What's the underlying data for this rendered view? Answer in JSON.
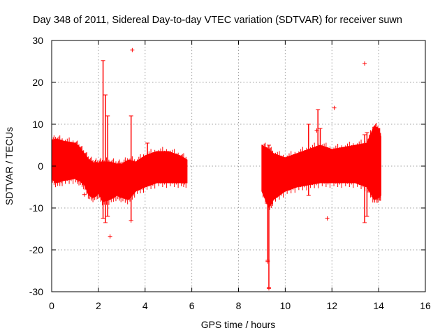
{
  "chart_data": {
    "type": "scatter",
    "title": "Day 348 of 2011, Sidereal Day-to-day VTEC variation (SDTVAR) for receiver suwn",
    "xlabel": "GPS time / hours",
    "ylabel": "SDTVAR / TECUs",
    "xlim": [
      0,
      16
    ],
    "ylim": [
      -30,
      30
    ],
    "xticks": [
      0,
      2,
      4,
      6,
      8,
      10,
      12,
      14,
      16
    ],
    "yticks": [
      -30,
      -20,
      -10,
      0,
      10,
      20,
      30
    ],
    "xtick_labels": [
      "0",
      "2",
      "4",
      "6",
      "8",
      "10",
      "12",
      "14",
      "16"
    ],
    "ytick_labels": [
      "-30",
      "-20",
      "-10",
      "0",
      "10",
      "20",
      "30"
    ],
    "grid": true,
    "marker": "+",
    "color": "#ff0000",
    "series": [
      {
        "name": "SDTVAR",
        "envelope_note": "dense band of points, upper/lower bounds in TECU",
        "band_segments": [
          {
            "x": [
              0.0,
              0.2,
              0.5,
              1.0,
              1.2,
              1.4,
              1.6,
              1.8,
              2.0,
              2.2,
              2.5,
              2.8,
              3.0,
              3.3,
              3.6,
              4.0,
              4.5,
              5.0,
              5.5,
              5.8
            ],
            "upper": [
              6.0,
              6.5,
              6.0,
              5.5,
              4.5,
              3.0,
              1.5,
              0.8,
              0.8,
              1.0,
              1.0,
              0.5,
              0.5,
              1.5,
              1.0,
              2.5,
              3.5,
              3.5,
              2.5,
              1.5
            ],
            "lower": [
              -3.0,
              -4.0,
              -3.5,
              -3.0,
              -3.5,
              -4.5,
              -7.0,
              -7.5,
              -6.5,
              -8.5,
              -8.0,
              -7.0,
              -7.5,
              -8.0,
              -6.0,
              -5.0,
              -4.0,
              -4.0,
              -4.0,
              -4.0
            ]
          },
          {
            "x": [
              9.0,
              9.3,
              9.5,
              10.0,
              10.5,
              11.0,
              11.5,
              12.0,
              12.5,
              13.0,
              13.5,
              13.8,
              14.0,
              14.1
            ],
            "upper": [
              5.0,
              4.0,
              3.0,
              2.0,
              3.0,
              4.0,
              5.0,
              4.0,
              4.5,
              5.0,
              5.5,
              9.5,
              9.0,
              7.0
            ],
            "lower": [
              -6.0,
              -10.0,
              -8.0,
              -6.0,
              -5.0,
              -4.5,
              -4.0,
              -4.0,
              -4.0,
              -4.0,
              -5.0,
              -8.0,
              -7.5,
              -7.0
            ]
          }
        ],
        "spikes": [
          {
            "x": 2.2,
            "y_top": 25.2,
            "y_bottom": -12.5
          },
          {
            "x": 2.3,
            "y_top": 17.0,
            "y_bottom": -13.5
          },
          {
            "x": 2.4,
            "y_top": 12.0,
            "y_bottom": -12.0
          },
          {
            "x": 3.4,
            "y_top": 12.0,
            "y_bottom": -13.0
          },
          {
            "x": 4.1,
            "y_top": 5.5,
            "y_bottom": -4.0
          },
          {
            "x": 9.3,
            "y_top": 5.0,
            "y_bottom": -29.0
          },
          {
            "x": 9.25,
            "y_top": 4.0,
            "y_bottom": -22.5
          },
          {
            "x": 11.0,
            "y_top": 10.0,
            "y_bottom": -7.0
          },
          {
            "x": 11.4,
            "y_top": 13.5,
            "y_bottom": -3.0
          },
          {
            "x": 11.5,
            "y_top": 9.0,
            "y_bottom": -4.0
          },
          {
            "x": 13.4,
            "y_top": 7.5,
            "y_bottom": -13.5
          },
          {
            "x": 13.5,
            "y_top": 8.0,
            "y_bottom": -12.0
          }
        ],
        "points": [
          {
            "x": 3.45,
            "y": 27.7
          },
          {
            "x": 13.4,
            "y": 24.5
          },
          {
            "x": 12.1,
            "y": 13.9
          },
          {
            "x": 2.5,
            "y": -16.8
          },
          {
            "x": 11.8,
            "y": -12.5
          },
          {
            "x": 1.4,
            "y": -6.8
          },
          {
            "x": 3.4,
            "y": -13.0
          },
          {
            "x": 9.25,
            "y": -22.8
          },
          {
            "x": 9.3,
            "y": -29.2
          },
          {
            "x": 11.35,
            "y": 8.5
          }
        ]
      }
    ]
  }
}
